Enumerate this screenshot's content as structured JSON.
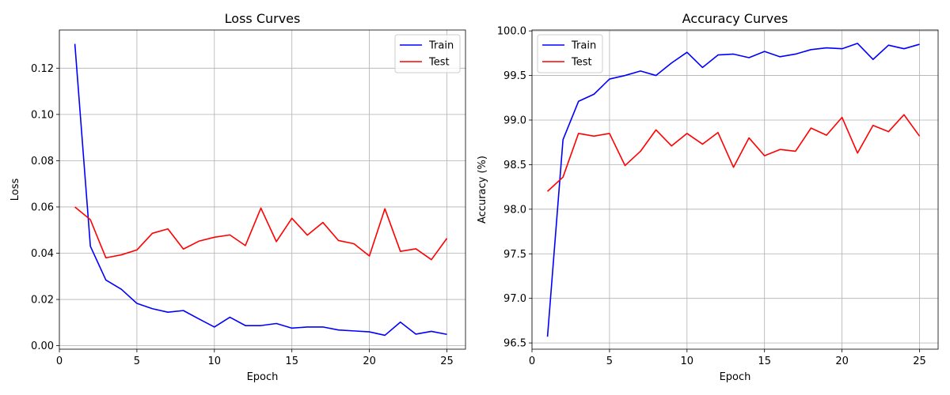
{
  "chart_data": [
    {
      "type": "line",
      "title": "Loss Curves",
      "xlabel": "Epoch",
      "ylabel": "Loss",
      "xlim": [
        0,
        26.2
      ],
      "ylim": [
        -0.0015,
        0.1365
      ],
      "xticks": [
        0,
        5,
        10,
        15,
        20,
        25
      ],
      "yticks": [
        0.0,
        0.02,
        0.04,
        0.06,
        0.08,
        0.1,
        0.12
      ],
      "ytick_format": 2,
      "grid": true,
      "legend_position": "upper right",
      "x": [
        1,
        2,
        3,
        4,
        5,
        6,
        7,
        8,
        9,
        10,
        11,
        12,
        13,
        14,
        15,
        16,
        17,
        18,
        19,
        20,
        21,
        22,
        23,
        24,
        25
      ],
      "series": [
        {
          "name": "Train",
          "color": "#0000ff",
          "values": [
            0.1305,
            0.043,
            0.0284,
            0.0244,
            0.0183,
            0.016,
            0.0145,
            0.0152,
            0.0116,
            0.0081,
            0.0123,
            0.0087,
            0.0087,
            0.0096,
            0.0076,
            0.0081,
            0.0081,
            0.0068,
            0.0064,
            0.006,
            0.0045,
            0.0102,
            0.005,
            0.0062,
            0.0049
          ]
        },
        {
          "name": "Test",
          "color": "#ff0000",
          "values": [
            0.06,
            0.0545,
            0.038,
            0.0393,
            0.0414,
            0.0486,
            0.0505,
            0.0418,
            0.0452,
            0.0469,
            0.0479,
            0.0433,
            0.0595,
            0.045,
            0.0551,
            0.0478,
            0.0533,
            0.0455,
            0.0441,
            0.0388,
            0.0592,
            0.0408,
            0.0419,
            0.0372,
            0.0464
          ]
        }
      ]
    },
    {
      "type": "line",
      "title": "Accuracy Curves",
      "xlabel": "Epoch",
      "ylabel": "Accuracy (%)",
      "xlim": [
        0,
        26.2
      ],
      "ylim": [
        96.43,
        100.01
      ],
      "xticks": [
        0,
        5,
        10,
        15,
        20,
        25
      ],
      "yticks": [
        96.5,
        97.0,
        97.5,
        98.0,
        98.5,
        99.0,
        99.5,
        100.0
      ],
      "ytick_format": 1,
      "grid": true,
      "legend_position": "upper left",
      "x": [
        1,
        2,
        3,
        4,
        5,
        6,
        7,
        8,
        9,
        10,
        11,
        12,
        13,
        14,
        15,
        16,
        17,
        18,
        19,
        20,
        21,
        22,
        23,
        24,
        25
      ],
      "series": [
        {
          "name": "Train",
          "color": "#0000ff",
          "values": [
            96.57,
            98.78,
            99.21,
            99.29,
            99.46,
            99.5,
            99.55,
            99.5,
            99.64,
            99.76,
            99.59,
            99.73,
            99.74,
            99.7,
            99.77,
            99.71,
            99.74,
            99.79,
            99.81,
            99.8,
            99.86,
            99.68,
            99.84,
            99.8,
            99.85
          ]
        },
        {
          "name": "Test",
          "color": "#ff0000",
          "values": [
            98.2,
            98.36,
            98.85,
            98.82,
            98.85,
            98.49,
            98.65,
            98.89,
            98.71,
            98.85,
            98.73,
            98.86,
            98.47,
            98.8,
            98.6,
            98.67,
            98.65,
            98.91,
            98.83,
            99.03,
            98.63,
            98.94,
            98.87,
            99.06,
            98.82
          ]
        }
      ]
    }
  ]
}
